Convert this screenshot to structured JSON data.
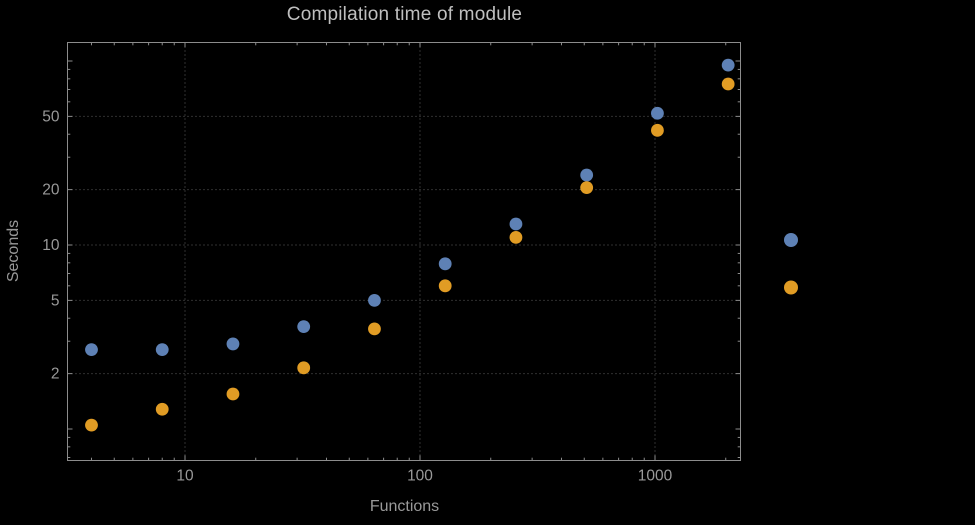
{
  "page": {
    "background": "#000000"
  },
  "chart_data": {
    "type": "scatter",
    "title": "Compilation time of module",
    "xlabel": "Functions",
    "ylabel": "Seconds",
    "x_scale": "log",
    "y_scale": "log",
    "xlim": [
      3.16,
      2300
    ],
    "ylim": [
      0.68,
      127
    ],
    "x_ticks": [
      10,
      100,
      1000
    ],
    "y_ticks": [
      2,
      5,
      10,
      20,
      50
    ],
    "grid": "dotted",
    "legend_position": "right-outside",
    "x": [
      4,
      8,
      16,
      32,
      64,
      128,
      256,
      512,
      1024,
      2048
    ],
    "series": [
      {
        "name": "blue",
        "color": "#5e81b5",
        "values": [
          2.7,
          2.7,
          2.9,
          3.6,
          5.0,
          7.9,
          13,
          24,
          52,
          95
        ]
      },
      {
        "name": "orange",
        "color": "#e19c24",
        "values": [
          1.05,
          1.28,
          1.55,
          2.15,
          3.5,
          6.0,
          11,
          20.5,
          42,
          75
        ]
      }
    ],
    "legend": {
      "entries": [
        {
          "name": "blue",
          "color": "#5e81b5"
        },
        {
          "name": "orange",
          "color": "#e19c24"
        }
      ]
    }
  },
  "colors": {
    "background": "#000000",
    "frame": "#8c8c8c",
    "grid": "#5e5e5e",
    "tick_label": "#999999",
    "axis_label": "#999999",
    "title": "#bfbfbf"
  }
}
